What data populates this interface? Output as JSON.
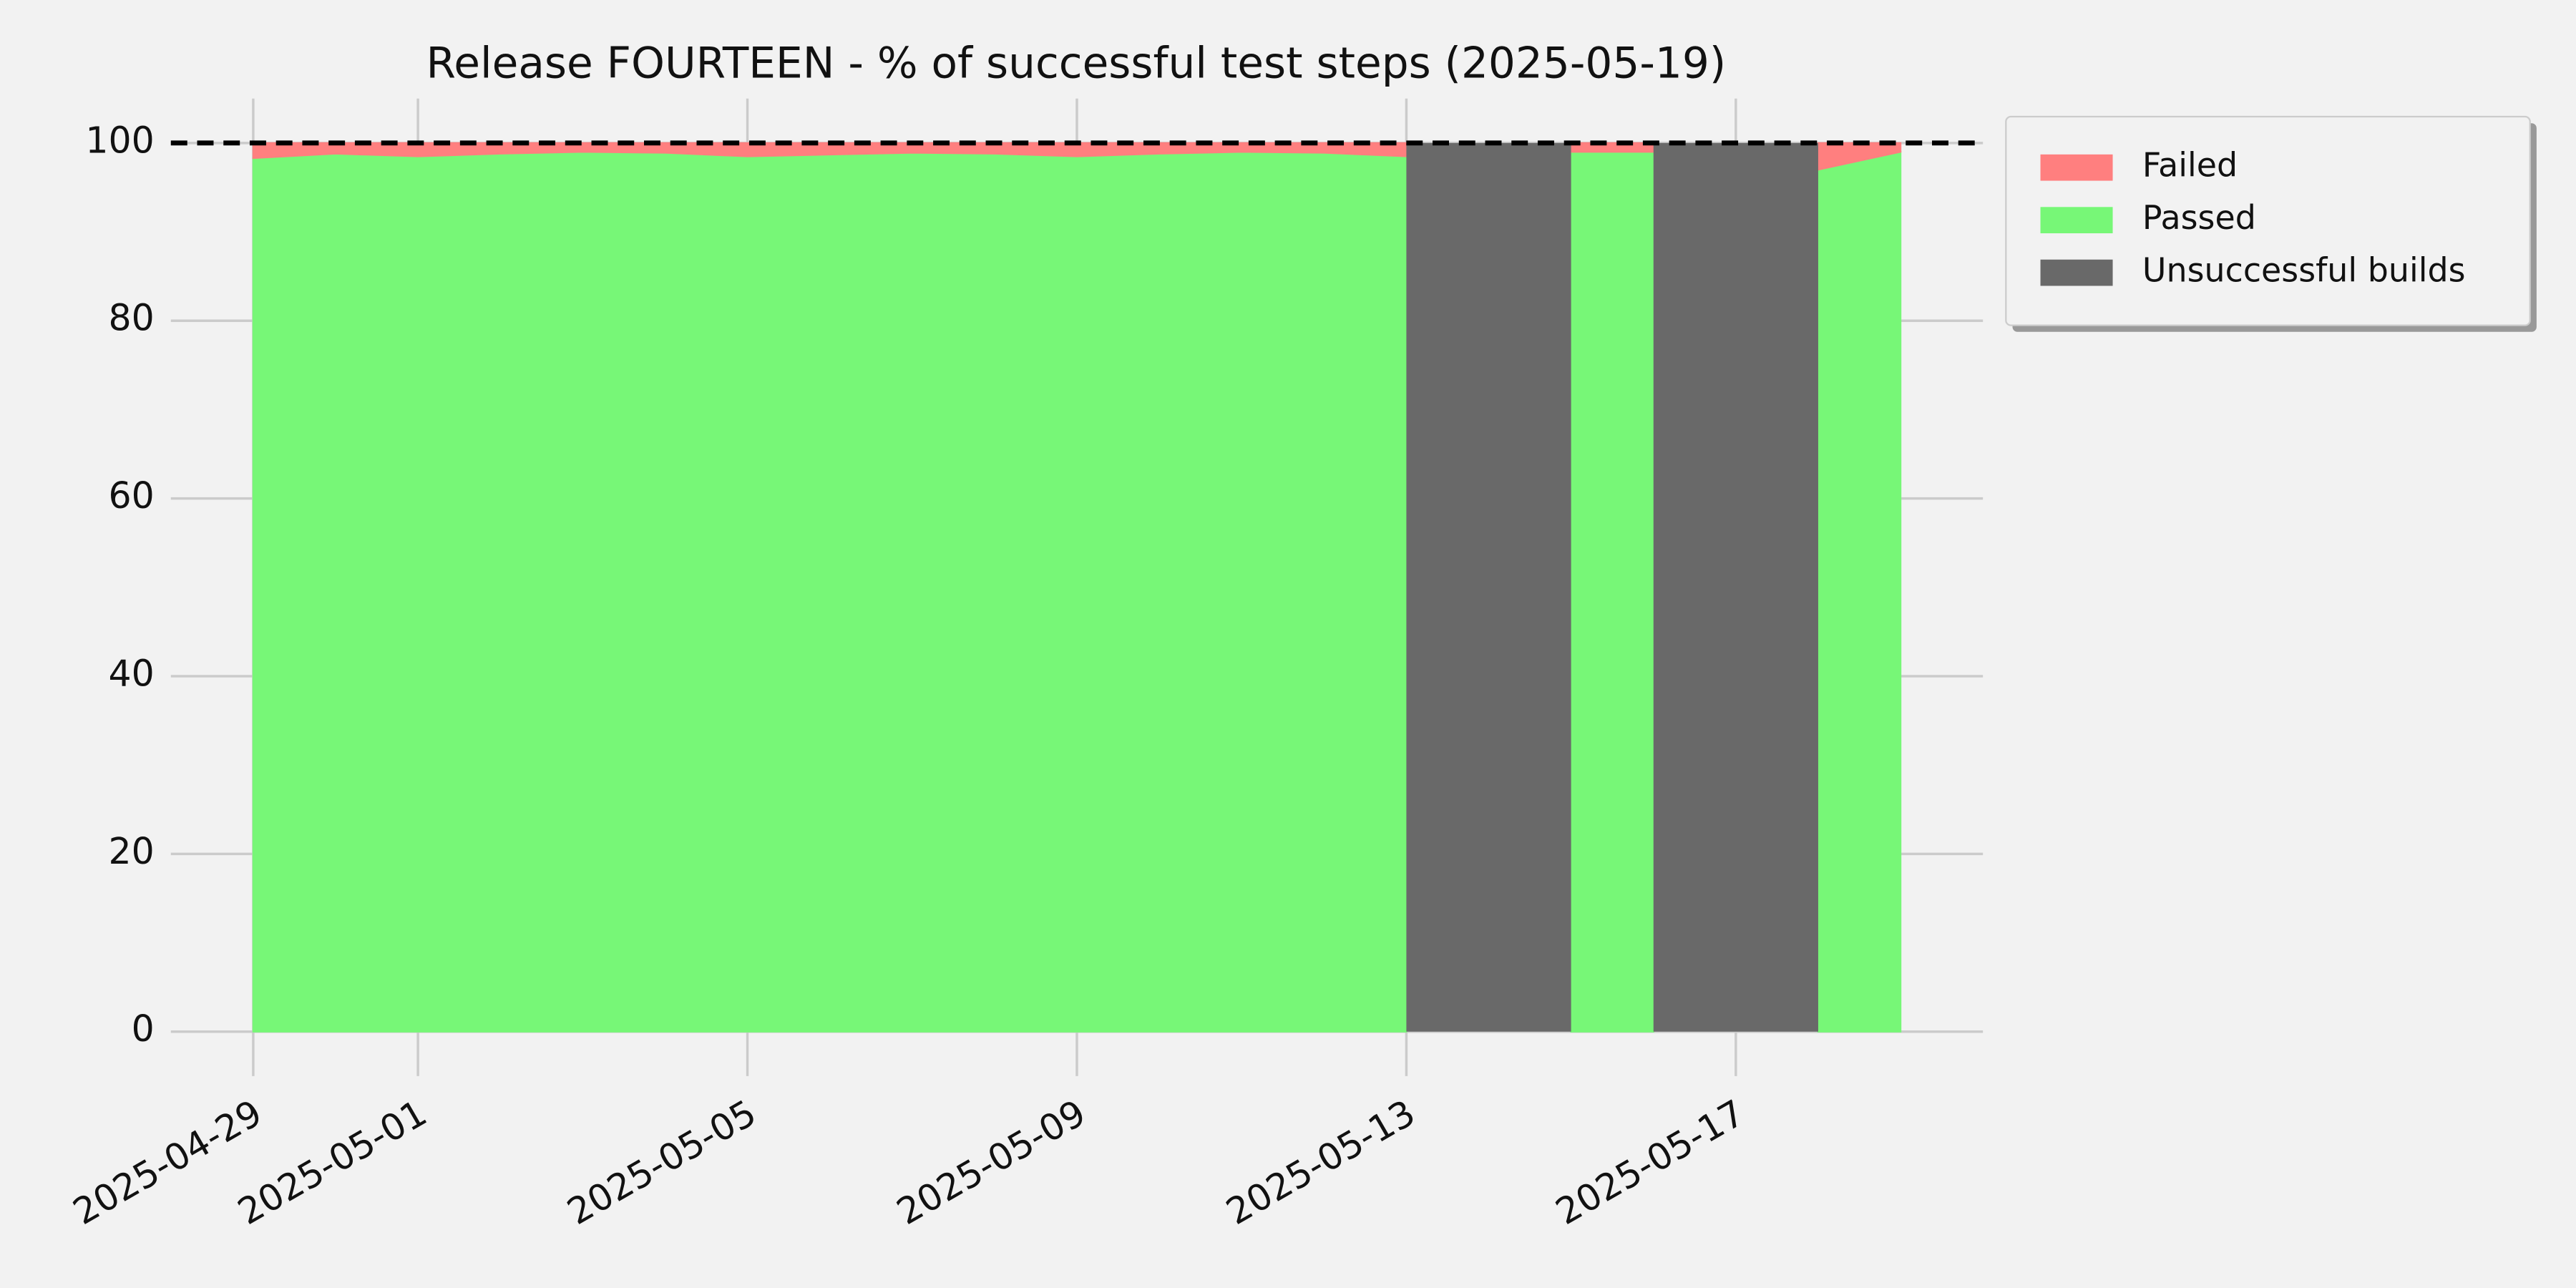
{
  "chart_data": {
    "type": "area",
    "title": "Release FOURTEEN - % of successful test steps (2025-05-19)",
    "x": [
      "2025-04-29",
      "2025-04-30",
      "2025-05-01",
      "2025-05-02",
      "2025-05-03",
      "2025-05-04",
      "2025-05-05",
      "2025-05-06",
      "2025-05-07",
      "2025-05-08",
      "2025-05-09",
      "2025-05-10",
      "2025-05-11",
      "2025-05-12",
      "2025-05-13",
      "2025-05-14",
      "2025-05-15",
      "2025-05-16",
      "2025-05-17",
      "2025-05-18",
      "2025-05-19"
    ],
    "series": [
      {
        "name": "Failed",
        "color": "#ff7f7f",
        "values": [
          1.7,
          1.2,
          1.5,
          1.2,
          1.0,
          1.1,
          1.5,
          1.3,
          1.1,
          1.2,
          1.5,
          1.2,
          1.0,
          1.1,
          1.5,
          null,
          1.0,
          1.0,
          null,
          3.0,
          1.0
        ]
      },
      {
        "name": "Passed",
        "color": "#77f777",
        "values": [
          98.3,
          98.8,
          98.5,
          98.8,
          99.0,
          98.9,
          98.5,
          98.7,
          98.9,
          98.8,
          98.5,
          98.8,
          99.0,
          98.9,
          98.5,
          null,
          99.0,
          99.0,
          null,
          97.0,
          99.0
        ]
      }
    ],
    "unsuccessful_builds": {
      "name": "Unsuccessful builds",
      "color": "#696969",
      "spans": [
        {
          "start": "2025-05-13",
          "end": "2025-05-15",
          "value": 100
        },
        {
          "start": "2025-05-16",
          "end": "2025-05-18",
          "value": 100
        }
      ]
    },
    "reference_line": 100,
    "xlim": [
      "2025-04-28",
      "2025-05-20"
    ],
    "xticks": [
      "2025-04-29",
      "2025-05-01",
      "2025-05-05",
      "2025-05-09",
      "2025-05-13",
      "2025-05-17"
    ],
    "ylim": [
      -5,
      105
    ],
    "yticks": [
      0,
      20,
      40,
      60,
      80,
      100
    ],
    "grid": true,
    "legend": "outside upper right"
  }
}
